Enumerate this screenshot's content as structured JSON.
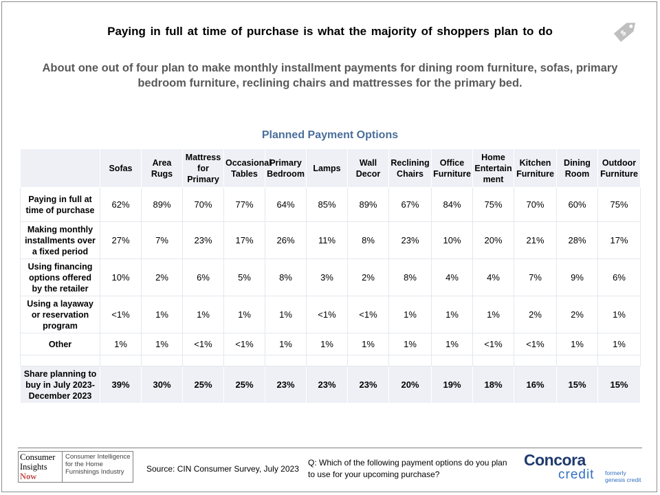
{
  "title": "Paying in full at time of purchase is what the majority of shoppers plan to do",
  "subtitle": "About one out of four plan to make monthly installment payments for dining room furniture, sofas, primary bedroom furniture, reclining chairs and mattresses for the primary bed.",
  "chart_data": {
    "type": "table",
    "title": "Planned Payment Options",
    "columns": [
      [
        "Sofas"
      ],
      [
        "Area",
        "Rugs"
      ],
      [
        "Mattress",
        "for",
        "Primary"
      ],
      [
        "Occasional",
        "Tables"
      ],
      [
        "Primary",
        "Bedroom"
      ],
      [
        "Lamps"
      ],
      [
        "Wall",
        "Decor"
      ],
      [
        "Reclining",
        "Chairs"
      ],
      [
        "Office",
        "Furniture"
      ],
      [
        "Home",
        "Entertain",
        "ment"
      ],
      [
        "Kitchen",
        "Furniture"
      ],
      [
        "Dining",
        "Room"
      ],
      [
        "Outdoor",
        "Furniture"
      ]
    ],
    "rows": [
      {
        "label": [
          "Paying in full at",
          "time of purchase"
        ],
        "values": [
          "62%",
          "89%",
          "70%",
          "77%",
          "64%",
          "85%",
          "89%",
          "67%",
          "84%",
          "75%",
          "70%",
          "60%",
          "75%"
        ]
      },
      {
        "label": [
          "Making monthly",
          "installments over",
          "a fixed period"
        ],
        "values": [
          "27%",
          "7%",
          "23%",
          "17%",
          "26%",
          "11%",
          "8%",
          "23%",
          "10%",
          "20%",
          "21%",
          "28%",
          "17%"
        ]
      },
      {
        "label": [
          "Using financing",
          "options offered",
          "by the retailer"
        ],
        "values": [
          "10%",
          "2%",
          "6%",
          "5%",
          "8%",
          "3%",
          "2%",
          "8%",
          "4%",
          "4%",
          "7%",
          "9%",
          "6%"
        ]
      },
      {
        "label": [
          "Using a  layaway",
          "or reservation",
          "program"
        ],
        "values": [
          "<1%",
          "1%",
          "1%",
          "1%",
          "1%",
          "<1%",
          "<1%",
          "1%",
          "1%",
          "1%",
          "2%",
          "2%",
          "1%"
        ]
      },
      {
        "label": [
          "Other"
        ],
        "values": [
          "1%",
          "1%",
          "<1%",
          "<1%",
          "1%",
          "1%",
          "1%",
          "1%",
          "1%",
          "<1%",
          "<1%",
          "1%",
          "1%"
        ]
      }
    ],
    "total_row": {
      "label": [
        "Share planning to",
        "buy in July 2023-",
        "December 2023"
      ],
      "values": [
        "39%",
        "30%",
        "25%",
        "25%",
        "23%",
        "23%",
        "23%",
        "20%",
        "19%",
        "18%",
        "16%",
        "15%",
        "15%"
      ]
    }
  },
  "footer": {
    "logo_left": [
      "Consumer",
      "Insights",
      "Now"
    ],
    "logo_right": [
      "Consumer Intelligence",
      "for the Home",
      "Furnishings Industry"
    ],
    "source": "Source:  CIN Consumer Survey, July 2023",
    "question": "Q: Which of the following payment options do you plan to use for your upcoming purchase?",
    "brand_word": "Concora",
    "brand_sub": "credit",
    "formerly": [
      "formerly",
      "genesis credit"
    ]
  },
  "colors": {
    "table_title": "#4a6e9b",
    "subtitle": "#595959",
    "shade": "#eef0f5",
    "brand": "#1f3a6e",
    "brand_light": "#2f6fc0",
    "logo_accent": "#c0504d"
  }
}
